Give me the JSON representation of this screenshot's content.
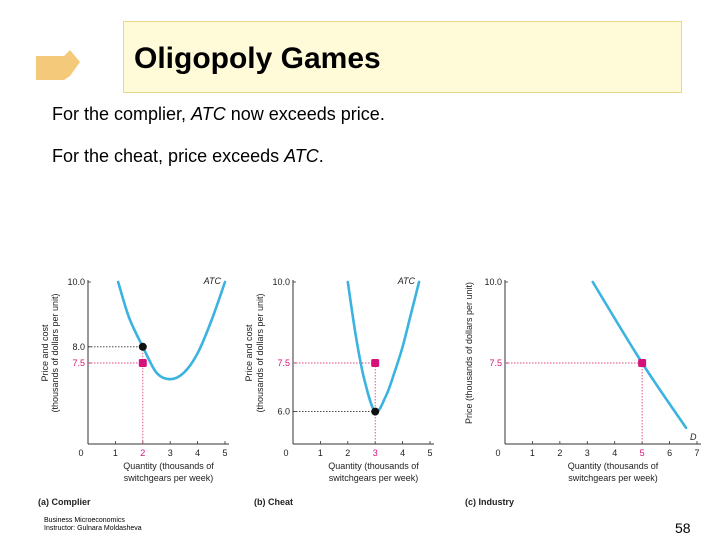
{
  "slide": {
    "title": "Oligopoly Games",
    "line1_prefix": "For the complier, ",
    "line1_em": "ATC",
    "line1_suffix": " now exceeds price.",
    "line2_prefix": "For the cheat, price exceeds ",
    "line2_em": "ATC",
    "line2_suffix": ".",
    "footer_line1": "Business Microeconomics",
    "footer_line2": "Instructor: Gulnara Moldasheva",
    "page_number": "58"
  },
  "colors": {
    "curve": "#3bb3e0",
    "dot_price": "#d6127a",
    "dot_cost": "#111111",
    "guide": "#e0457b",
    "title_bg": "#fffbd8",
    "tab": "#f5c97a"
  },
  "chart_data": [
    {
      "type": "line",
      "panel_label": "(a) Complier",
      "ylabel_line1": "Price and cost",
      "ylabel_line2": "(thousands of dollars per unit)",
      "xlabel_line1": "Quantity (thousands of",
      "xlabel_line2": "switchgears per week)",
      "origin_label": "0",
      "xlim": [
        0,
        5
      ],
      "ylim": [
        5,
        10
      ],
      "x_ticks": [
        "1",
        "2",
        "3",
        "4",
        "5"
      ],
      "highlight_x": "2",
      "y_ticks": [
        {
          "value": 10.0,
          "label": "10.0",
          "highlight": false
        },
        {
          "value": 8.0,
          "label": "8.0",
          "highlight": false
        },
        {
          "value": 7.5,
          "label": "7.5",
          "highlight": true
        }
      ],
      "series": [
        {
          "name": "ATC",
          "x": [
            1.1,
            1.5,
            2,
            2.5,
            3,
            3.5,
            4,
            4.5,
            5
          ],
          "y": [
            10.0,
            8.9,
            8.0,
            7.2,
            7.0,
            7.2,
            7.8,
            8.8,
            10.0
          ]
        }
      ],
      "points": [
        {
          "x": 2,
          "y": 8.0,
          "kind": "cost"
        },
        {
          "x": 2,
          "y": 7.5,
          "kind": "price"
        }
      ],
      "guide_x": 2,
      "guide_ys": [
        8.0,
        7.5
      ]
    },
    {
      "type": "line",
      "panel_label": "(b) Cheat",
      "ylabel_line1": "Price and cost",
      "ylabel_line2": "(thousands of dollars per unit)",
      "xlabel_line1": "Quantity (thousands of",
      "xlabel_line2": "switchgears per week)",
      "origin_label": "0",
      "xlim": [
        0,
        5
      ],
      "ylim": [
        5,
        10
      ],
      "x_ticks": [
        "1",
        "2",
        "3",
        "4",
        "5"
      ],
      "highlight_x": "3",
      "y_ticks": [
        {
          "value": 10.0,
          "label": "10.0",
          "highlight": false
        },
        {
          "value": 7.5,
          "label": "7.5",
          "highlight": true
        },
        {
          "value": 6.0,
          "label": "6.0",
          "highlight": false
        }
      ],
      "series": [
        {
          "name": "ATC",
          "x": [
            2.0,
            2.3,
            2.6,
            3,
            3.4,
            3.7,
            4,
            4.3,
            4.6
          ],
          "y": [
            10.0,
            8.3,
            7.0,
            6.0,
            6.5,
            7.2,
            8.0,
            9.0,
            10.0
          ]
        }
      ],
      "points": [
        {
          "x": 3,
          "y": 7.5,
          "kind": "price"
        },
        {
          "x": 3,
          "y": 6.0,
          "kind": "cost"
        }
      ],
      "guide_x": 3,
      "guide_ys": [
        7.5,
        6.0
      ]
    },
    {
      "type": "line",
      "panel_label": "(c) Industry",
      "ylabel_line1": "Price (thousands of dollars per unit)",
      "ylabel_line2": "",
      "xlabel_line1": "Quantity (thousands of",
      "xlabel_line2": "switchgears per week)",
      "origin_label": "0",
      "xlim": [
        0,
        7
      ],
      "ylim": [
        5,
        10
      ],
      "x_ticks": [
        "1",
        "2",
        "3",
        "4",
        "5",
        "6",
        "7"
      ],
      "highlight_x": "5",
      "y_ticks": [
        {
          "value": 10.0,
          "label": "10.0",
          "highlight": false
        },
        {
          "value": 7.5,
          "label": "7.5",
          "highlight": true
        }
      ],
      "series": [
        {
          "name": "D",
          "x": [
            3.2,
            5,
            6.6
          ],
          "y": [
            10.0,
            7.5,
            5.5
          ]
        }
      ],
      "points": [
        {
          "x": 5,
          "y": 7.5,
          "kind": "price"
        }
      ],
      "guide_x": 5,
      "guide_ys": [
        7.5
      ]
    }
  ]
}
